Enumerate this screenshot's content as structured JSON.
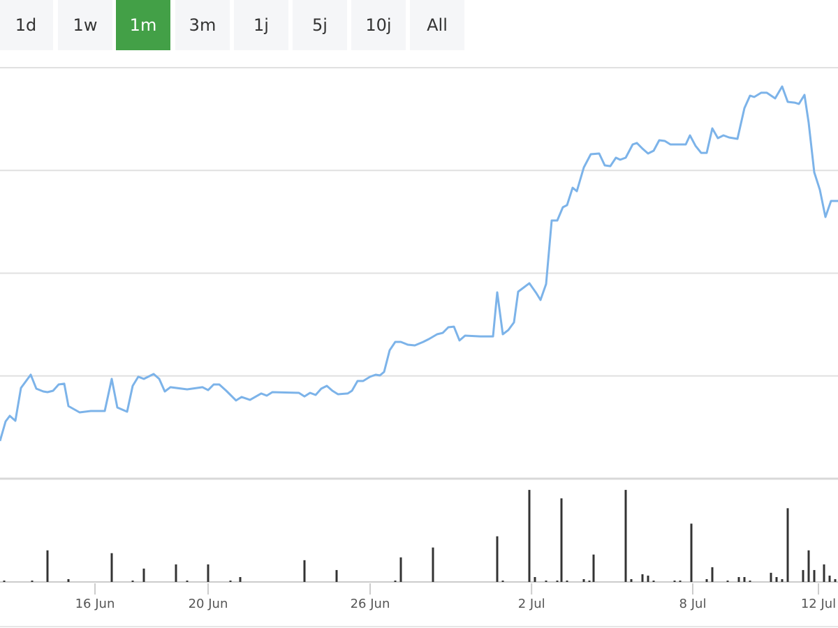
{
  "toolbar": {
    "buttons": [
      "1d",
      "1w",
      "1m",
      "3m",
      "1j",
      "5j",
      "10j",
      "All"
    ],
    "active": 2,
    "active_color": "#43a047"
  },
  "chart_data": [
    {
      "type": "line",
      "color": "#7cb3e9",
      "xlim": [
        0,
        30
      ],
      "ylim": [
        0,
        40
      ],
      "gridlines": [
        10,
        20,
        30,
        40
      ],
      "x": [
        0,
        0.2,
        0.35,
        0.55,
        0.75,
        1.1,
        1.3,
        1.55,
        1.7,
        1.9,
        2.1,
        2.3,
        2.45,
        2.85,
        3.25,
        3.75,
        4,
        4.2,
        4.55,
        4.75,
        4.95,
        5.15,
        5.5,
        5.7,
        5.9,
        6.1,
        6.7,
        7.25,
        7.45,
        7.65,
        7.85,
        8.1,
        8.45,
        8.65,
        8.95,
        9.35,
        9.55,
        9.75,
        10.7,
        10.9,
        11.1,
        11.3,
        11.5,
        11.7,
        11.9,
        12.1,
        12.45,
        12.6,
        12.8,
        13,
        13.25,
        13.45,
        13.6,
        13.75,
        13.95,
        14.15,
        14.35,
        14.6,
        14.85,
        15.15,
        15.35,
        15.65,
        15.85,
        16.05,
        16.25,
        16.45,
        16.65,
        17.2,
        17.65,
        17.8,
        18,
        18.2,
        18.4,
        18.55,
        18.75,
        18.95,
        19.2,
        19.35,
        19.55,
        19.75,
        19.95,
        20.15,
        20.3,
        20.5,
        20.65,
        20.9,
        21.15,
        21.45,
        21.65,
        21.85,
        22.05,
        22.2,
        22.4,
        22.65,
        22.8,
        23,
        23.2,
        23.4,
        23.6,
        23.8,
        24,
        24.55,
        24.7,
        24.9,
        25.1,
        25.3,
        25.5,
        25.7,
        25.9,
        26.1,
        26.4,
        26.65,
        26.85,
        27,
        27.25,
        27.45,
        27.75,
        28,
        28.2,
        28.45,
        28.6,
        28.8,
        28.95,
        29.15,
        29.35,
        29.55,
        29.75,
        30
      ],
      "values": [
        3.67,
        5.57,
        6.11,
        5.64,
        8.83,
        10.12,
        8.76,
        8.49,
        8.42,
        8.56,
        9.17,
        9.24,
        7.06,
        6.45,
        6.59,
        6.59,
        9.71,
        6.93,
        6.52,
        9.03,
        9.92,
        9.71,
        10.19,
        9.71,
        8.49,
        8.9,
        8.69,
        8.9,
        8.62,
        9.17,
        9.17,
        8.56,
        7.61,
        7.95,
        7.67,
        8.29,
        8.08,
        8.42,
        8.35,
        8.01,
        8.35,
        8.15,
        8.76,
        9.03,
        8.56,
        8.22,
        8.29,
        8.56,
        9.51,
        9.51,
        9.92,
        10.12,
        10.05,
        10.39,
        12.5,
        13.31,
        13.31,
        13.04,
        12.97,
        13.31,
        13.58,
        14.06,
        14.19,
        14.74,
        14.8,
        13.45,
        13.92,
        13.85,
        13.85,
        18.13,
        14.06,
        14.47,
        15.21,
        18.2,
        18.61,
        19.02,
        18.06,
        17.39,
        18.95,
        25.13,
        25.13,
        26.42,
        26.62,
        28.32,
        27.98,
        30.29,
        31.58,
        31.65,
        30.49,
        30.42,
        31.24,
        31.04,
        31.24,
        32.53,
        32.67,
        32.12,
        31.65,
        31.92,
        32.94,
        32.87,
        32.53,
        32.53,
        33.41,
        32.39,
        31.71,
        31.71,
        34.09,
        33.14,
        33.41,
        33.21,
        33.07,
        36.06,
        37.28,
        37.15,
        37.56,
        37.56,
        37.01,
        38.17,
        36.67,
        36.6,
        36.47,
        37.35,
        34.64,
        29.81,
        28.12,
        25.47,
        27.03,
        27.03
      ]
    },
    {
      "type": "bar",
      "color": "#333333",
      "xlim": [
        0,
        30
      ],
      "ylim": [
        0,
        15
      ],
      "x": [
        0.15,
        1.15,
        1.7,
        2.45,
        4,
        4.75,
        5.15,
        6.3,
        6.7,
        7.45,
        8.25,
        8.6,
        10.9,
        12.05,
        14.15,
        14.35,
        15.5,
        17.8,
        18,
        18.95,
        19.15,
        19.55,
        19.95,
        20.1,
        20.3,
        20.9,
        21.1,
        21.25,
        22.4,
        22.6,
        23,
        23.2,
        23.4,
        24.15,
        24.35,
        24.75,
        25.3,
        25.5,
        26.05,
        26.45,
        26.65,
        26.85,
        27.6,
        27.8,
        28,
        28.2,
        28.75,
        28.95,
        29.15,
        29.5,
        29.7,
        29.9
      ],
      "values": [
        0.2,
        0.2,
        4.59,
        0.41,
        4.18,
        0.2,
        1.94,
        2.55,
        0.2,
        2.55,
        0.2,
        0.71,
        3.16,
        1.73,
        0.2,
        3.57,
        5.0,
        6.63,
        0.2,
        13.37,
        0.71,
        0.2,
        0.2,
        12.14,
        0.2,
        0.41,
        0.2,
        3.98,
        13.37,
        0.41,
        1.12,
        0.92,
        0.2,
        0.2,
        0.2,
        8.47,
        0.41,
        2.14,
        0.2,
        0.71,
        0.71,
        0.2,
        1.33,
        0.71,
        0.41,
        10.71,
        1.73,
        4.59,
        1.73,
        2.55,
        0.92,
        0.41
      ],
      "xticks": [
        {
          "value": 3.4,
          "label": "16 Jun"
        },
        {
          "value": 7.45,
          "label": "20 Jun"
        },
        {
          "value": 13.25,
          "label": "26 Jun"
        },
        {
          "value": 19.03,
          "label": "2 Jul"
        },
        {
          "value": 24.8,
          "label": "8 Jul"
        },
        {
          "value": 29.3,
          "label": "12 Jul"
        }
      ]
    }
  ]
}
